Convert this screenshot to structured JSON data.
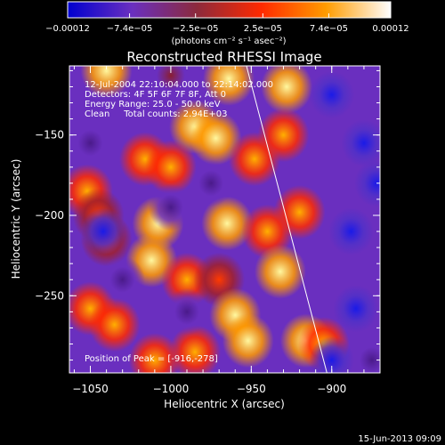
{
  "chart_data": {
    "type": "heatmap",
    "title": "Reconstructed RHESSI Image",
    "xlabel": "Heliocentric X (arcsec)",
    "ylabel": "Heliocentric Y (arcsec)",
    "xlim": [
      -1063,
      -870
    ],
    "ylim": [
      -298,
      -107
    ],
    "x_ticks": [
      -1050,
      -1000,
      -950,
      -900
    ],
    "y_ticks": [
      -150,
      -200,
      -250
    ],
    "x_tick_labels": [
      "−1050",
      "−1000",
      "−950",
      "−900"
    ],
    "y_tick_labels": [
      "−150",
      "−200",
      "−250"
    ],
    "colorbar": {
      "min": -0.00012,
      "max": 0.00012,
      "ticks": [
        -0.00012,
        -7.4e-05,
        -2.5e-05,
        2.5e-05,
        7.4e-05,
        0.00012
      ],
      "tick_labels": [
        "−0.00012",
        "−7.4e−05",
        "−2.5e−05",
        "2.5e−05",
        "7.4e−05",
        "0.00012"
      ],
      "units_label": "(photons cm⁻² s⁻¹ asec⁻²)",
      "colormap": [
        "#0000d0",
        "#6a2fbf",
        "#8c2a3c",
        "#ff2a00",
        "#ff9c00",
        "#ffffff"
      ]
    },
    "annotations": [
      "12-Jul-2004 22:10:04.000 to 22:14:02.000",
      "Detectors: 4F 5F 6F 7F 8F, Att 0",
      "Energy Range: 25.0 - 50.0 keV",
      "Clean     Total counts: 2.94E+03"
    ],
    "peak_label": "Position of Peak = [-916,-278]",
    "peak": {
      "x": -916,
      "y": -278
    },
    "limb_line": [
      {
        "x": -953,
        "y": -107
      },
      {
        "x": -903,
        "y": -298
      }
    ],
    "blobs": [
      {
        "x": -1040,
        "y": -110,
        "v": 0.9
      },
      {
        "x": -1000,
        "y": -113,
        "v": 0.3
      },
      {
        "x": -964,
        "y": -115,
        "v": 0.9
      },
      {
        "x": -928,
        "y": -120,
        "v": 1.0
      },
      {
        "x": -985,
        "y": -145,
        "v": 1.0
      },
      {
        "x": -972,
        "y": -152,
        "v": 0.9
      },
      {
        "x": -1016,
        "y": -165,
        "v": 0.8
      },
      {
        "x": -1000,
        "y": -170,
        "v": 0.75
      },
      {
        "x": -948,
        "y": -165,
        "v": 0.65
      },
      {
        "x": -930,
        "y": -150,
        "v": 0.6
      },
      {
        "x": -1052,
        "y": -185,
        "v": 0.6
      },
      {
        "x": -1045,
        "y": -200,
        "v": 0.45
      },
      {
        "x": -1008,
        "y": -205,
        "v": 0.85
      },
      {
        "x": -965,
        "y": -205,
        "v": 0.9
      },
      {
        "x": -940,
        "y": -210,
        "v": 0.7
      },
      {
        "x": -920,
        "y": -198,
        "v": 0.6
      },
      {
        "x": -1012,
        "y": -228,
        "v": 0.85
      },
      {
        "x": -990,
        "y": -240,
        "v": 0.6
      },
      {
        "x": -970,
        "y": -240,
        "v": 0.5
      },
      {
        "x": -932,
        "y": -235,
        "v": 0.9
      },
      {
        "x": -1050,
        "y": -258,
        "v": 0.7
      },
      {
        "x": -1035,
        "y": -268,
        "v": 0.6
      },
      {
        "x": -960,
        "y": -262,
        "v": 0.9
      },
      {
        "x": -952,
        "y": -278,
        "v": 0.85
      },
      {
        "x": -1010,
        "y": -290,
        "v": 0.75
      },
      {
        "x": -985,
        "y": -285,
        "v": 0.6
      },
      {
        "x": -916,
        "y": -278,
        "v": 1.0
      },
      {
        "x": -905,
        "y": -280,
        "v": 0.6
      },
      {
        "x": -1040,
        "y": -215,
        "v": 0.4
      },
      {
        "x": -1050,
        "y": -155,
        "v": -0.25
      },
      {
        "x": -1030,
        "y": -240,
        "v": -0.15
      },
      {
        "x": -990,
        "y": -260,
        "v": -0.15
      },
      {
        "x": -1000,
        "y": -195,
        "v": -0.1
      },
      {
        "x": -1042,
        "y": -210,
        "v": -0.6
      },
      {
        "x": -880,
        "y": -155,
        "v": -1.0
      },
      {
        "x": -888,
        "y": -210,
        "v": -0.9
      },
      {
        "x": -885,
        "y": -258,
        "v": -0.75
      },
      {
        "x": -900,
        "y": -125,
        "v": -0.5
      },
      {
        "x": -872,
        "y": -180,
        "v": -0.6
      },
      {
        "x": -900,
        "y": -290,
        "v": -0.5
      },
      {
        "x": -875,
        "y": -290,
        "v": -0.4
      },
      {
        "x": -975,
        "y": -180,
        "v": -0.2
      }
    ]
  },
  "footer": {
    "date_stamp": "15-Jun-2013 09:09"
  }
}
